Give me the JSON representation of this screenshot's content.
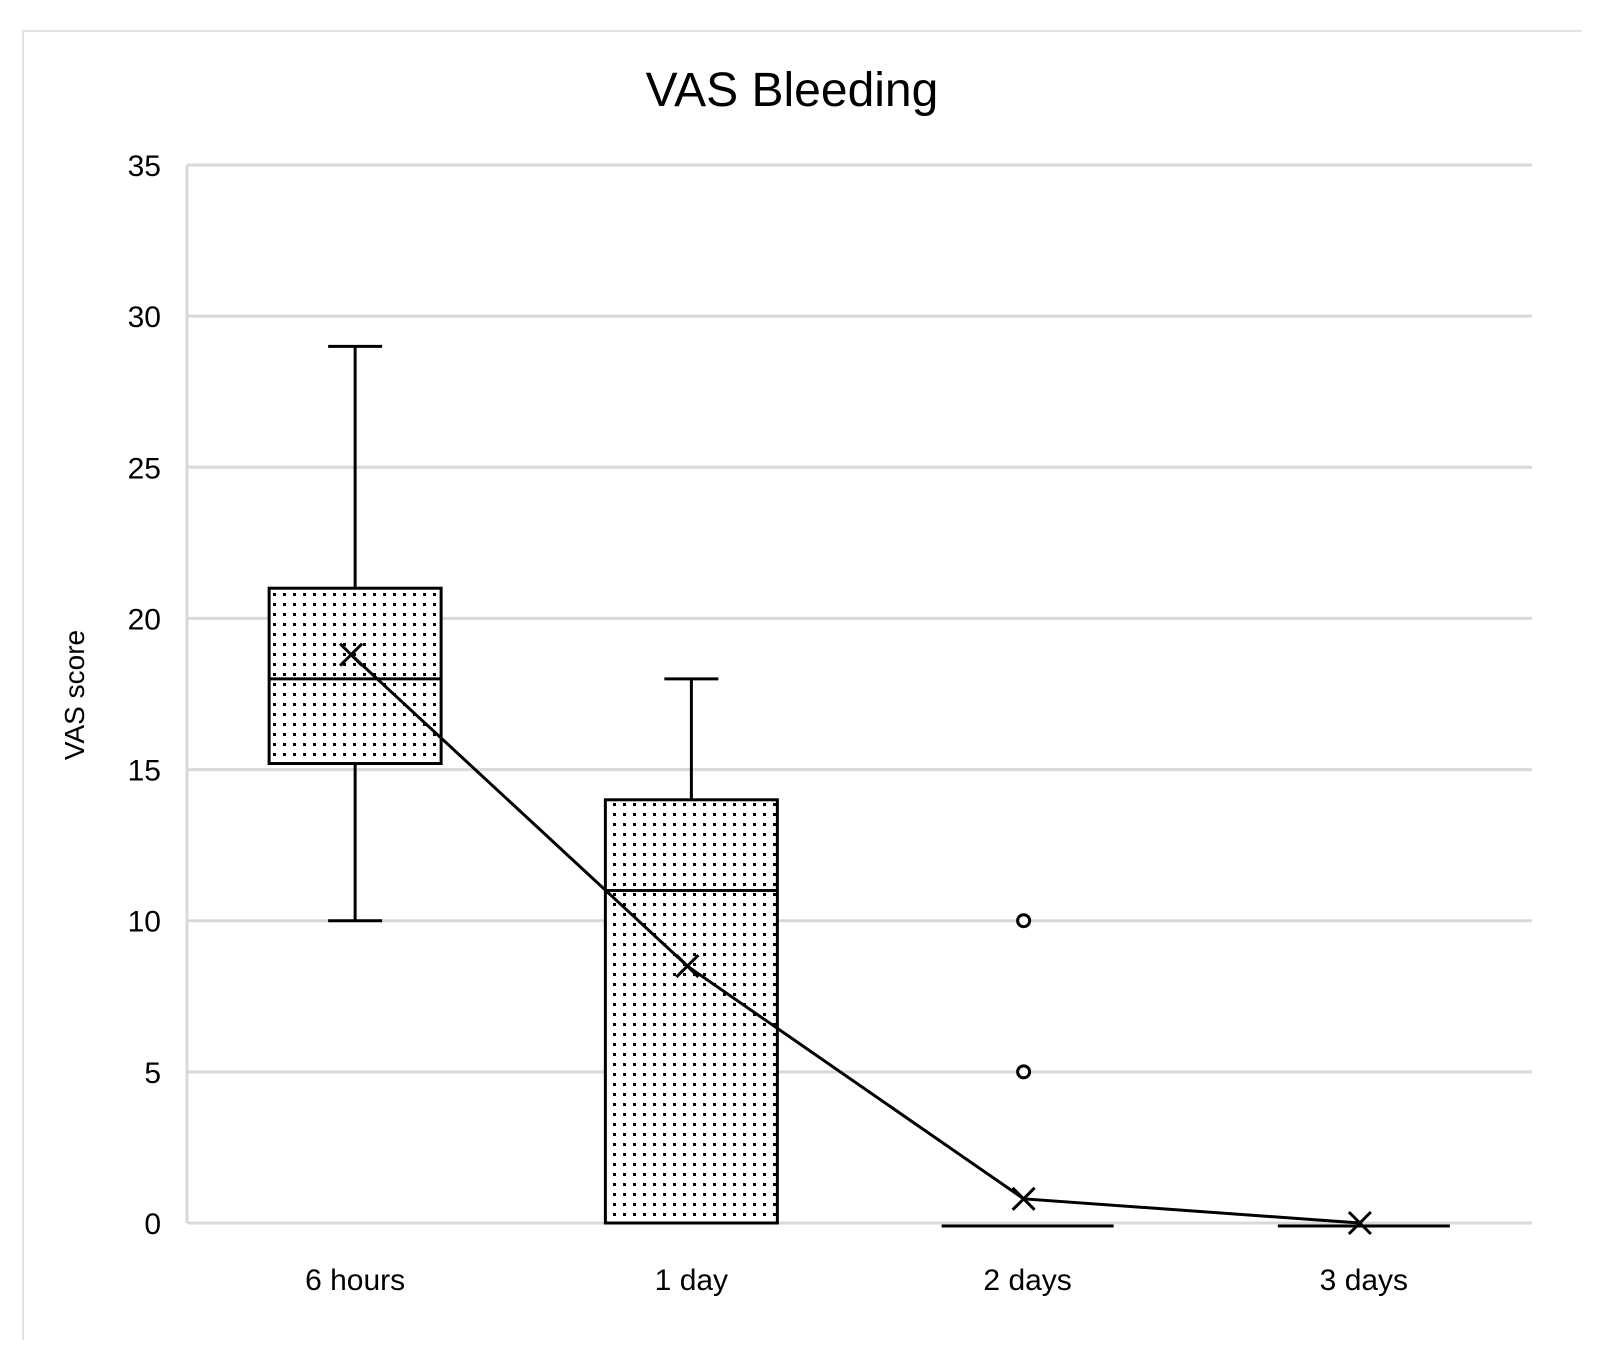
{
  "chart_data": {
    "type": "boxplot",
    "title": "VAS Bleeding",
    "xlabel": "",
    "ylabel": "VAS score",
    "ylim": [
      0,
      35
    ],
    "yticks": [
      0,
      5,
      10,
      15,
      20,
      25,
      30,
      35
    ],
    "categories": [
      "6 hours",
      "1 day",
      "2 days",
      "3 days"
    ],
    "boxes": [
      {
        "min": 10,
        "q1": 15.2,
        "median": 18,
        "q3": 21,
        "max": 29,
        "mean": 18.8,
        "outliers": []
      },
      {
        "min": 0,
        "q1": 0,
        "median": 11,
        "q3": 14,
        "max": 18,
        "mean": 8.5,
        "outliers": []
      },
      {
        "min": 0,
        "q1": 0,
        "median": 0,
        "q3": 0,
        "max": 0,
        "mean": 0.8,
        "outliers": [
          5,
          10
        ]
      },
      {
        "min": 0,
        "q1": 0,
        "median": 0,
        "q3": 0,
        "max": 0,
        "mean": 0,
        "outliers": []
      }
    ],
    "mean_line": true,
    "grid": true,
    "colors": {
      "stroke": "#000000",
      "grid": "#d9d9d9",
      "fill_pattern": "dotted"
    }
  }
}
